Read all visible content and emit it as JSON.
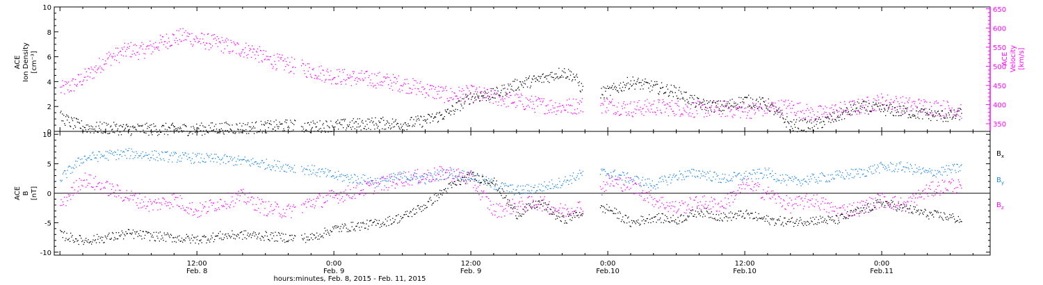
{
  "colors": {
    "black": "#000000",
    "magenta": "#ff00ff",
    "blue": "#1e88e5"
  },
  "chart_data": [
    {
      "type": "scatter",
      "panel": "top",
      "xlabel": "hours:minutes, Feb.  8, 2015 - Feb. 11, 2015",
      "x_ticks": [
        {
          "time": "12:00",
          "date": "Feb. 8",
          "hour": 12
        },
        {
          "time": "0:00",
          "date": "Feb. 9",
          "hour": 24
        },
        {
          "time": "12:00",
          "date": "Feb. 9",
          "hour": 36
        },
        {
          "time": "0:00",
          "date": "Feb.10",
          "hour": 48
        },
        {
          "time": "12:00",
          "date": "Feb.10",
          "hour": 60
        },
        {
          "time": "0:00",
          "date": "Feb.11",
          "hour": 72
        }
      ],
      "xlim_hours": [
        -0.5,
        81.5
      ],
      "y_left": {
        "label_lines": [
          "ACE",
          "Ion Density",
          "[cm⁻³]"
        ],
        "ylim": [
          0,
          10
        ],
        "ticks": [
          "0",
          "2",
          "4",
          "6",
          "8",
          "10"
        ]
      },
      "y_right": {
        "label_lines": [
          "ACE",
          "Velocity",
          "[km/s]"
        ],
        "ylim": [
          330,
          655
        ],
        "ticks": [
          "350",
          "400",
          "450",
          "500",
          "550",
          "600",
          "650"
        ]
      },
      "series": [
        {
          "name": "",
          "axis": "left",
          "color": "black",
          "points": [
            [
              0,
              1.2
            ],
            [
              1,
              0.7
            ],
            [
              2,
              0.4
            ],
            [
              3,
              0.3
            ],
            [
              4,
              0.3
            ],
            [
              6,
              0.2
            ],
            [
              8,
              0.2
            ],
            [
              10,
              0.2
            ],
            [
              12,
              0.2
            ],
            [
              14,
              0.3
            ],
            [
              16,
              0.3
            ],
            [
              18,
              0.4
            ],
            [
              20,
              0.5
            ],
            [
              22,
              0.4
            ],
            [
              24,
              0.5
            ],
            [
              26,
              0.6
            ],
            [
              28,
              0.7
            ],
            [
              30,
              0.6
            ],
            [
              32,
              0.9
            ],
            [
              34,
              1.5
            ],
            [
              36,
              2.8
            ],
            [
              38,
              3.0
            ],
            [
              40,
              3.8
            ],
            [
              42,
              4.2
            ],
            [
              44,
              4.8
            ],
            [
              45,
              4.5
            ],
            [
              46,
              3.0
            ],
            [
              48,
              3.2
            ],
            [
              50,
              4.0
            ],
            [
              52,
              3.6
            ],
            [
              54,
              3.2
            ],
            [
              56,
              2.2
            ],
            [
              58,
              2.0
            ],
            [
              60,
              2.5
            ],
            [
              62,
              2.2
            ],
            [
              64,
              0.5
            ],
            [
              66,
              0.5
            ],
            [
              68,
              1.2
            ],
            [
              70,
              2.0
            ],
            [
              72,
              1.8
            ],
            [
              74,
              1.6
            ],
            [
              76,
              1.4
            ],
            [
              78,
              1.2
            ],
            [
              79,
              1.5
            ]
          ]
        },
        {
          "name": "",
          "axis": "right",
          "color": "magenta",
          "points": [
            [
              0,
              440
            ],
            [
              1,
              450
            ],
            [
              2,
              470
            ],
            [
              3,
              490
            ],
            [
              4,
              520
            ],
            [
              5,
              530
            ],
            [
              6,
              545
            ],
            [
              7,
              540
            ],
            [
              8,
              550
            ],
            [
              9,
              565
            ],
            [
              10,
              575
            ],
            [
              11,
              580
            ],
            [
              12,
              570
            ],
            [
              13,
              565
            ],
            [
              14,
              560
            ],
            [
              15,
              550
            ],
            [
              16,
              545
            ],
            [
              17,
              540
            ],
            [
              18,
              520
            ],
            [
              20,
              505
            ],
            [
              22,
              490
            ],
            [
              24,
              475
            ],
            [
              26,
              470
            ],
            [
              28,
              465
            ],
            [
              30,
              455
            ],
            [
              32,
              440
            ],
            [
              34,
              425
            ],
            [
              36,
              430
            ],
            [
              38,
              420
            ],
            [
              40,
              410
            ],
            [
              42,
              400
            ],
            [
              44,
              395
            ],
            [
              46,
              400
            ],
            [
              48,
              400
            ],
            [
              50,
              390
            ],
            [
              52,
              395
            ],
            [
              54,
              392
            ],
            [
              56,
              388
            ],
            [
              58,
              390
            ],
            [
              60,
              385
            ],
            [
              62,
              392
            ],
            [
              64,
              395
            ],
            [
              66,
              375
            ],
            [
              68,
              385
            ],
            [
              70,
              395
            ],
            [
              72,
              410
            ],
            [
              74,
              400
            ],
            [
              76,
              395
            ],
            [
              78,
              390
            ],
            [
              79,
              385
            ]
          ]
        }
      ]
    },
    {
      "type": "scatter",
      "panel": "bottom",
      "x_ticks_shared": true,
      "xlim_hours": [
        -0.5,
        81.5
      ],
      "y_left": {
        "label_lines": [
          "ACE",
          "B",
          "[nT]"
        ],
        "ylim": [
          -10.5,
          10.5
        ],
        "ticks": [
          "-10",
          "-5",
          "0",
          "5",
          "10"
        ]
      },
      "legend": [
        {
          "label": "B",
          "sub": "x",
          "color": "black"
        },
        {
          "label": "B",
          "sub": "y",
          "color": "blue"
        },
        {
          "label": "B",
          "sub": "z",
          "color": "magenta"
        }
      ],
      "series": [
        {
          "name": "Bx",
          "color": "black",
          "points": [
            [
              0,
              -7.0
            ],
            [
              2,
              -8.0
            ],
            [
              4,
              -7.5
            ],
            [
              6,
              -6.8
            ],
            [
              8,
              -7.2
            ],
            [
              10,
              -7.5
            ],
            [
              12,
              -7.8
            ],
            [
              14,
              -7.2
            ],
            [
              16,
              -7.0
            ],
            [
              18,
              -7.2
            ],
            [
              20,
              -7.5
            ],
            [
              22,
              -7.5
            ],
            [
              24,
              -6.0
            ],
            [
              26,
              -5.5
            ],
            [
              28,
              -5.0
            ],
            [
              30,
              -4.0
            ],
            [
              32,
              -2.0
            ],
            [
              34,
              1.0
            ],
            [
              36,
              3.0
            ],
            [
              38,
              2.0
            ],
            [
              40,
              -3.5
            ],
            [
              42,
              -1.5
            ],
            [
              44,
              -4.5
            ],
            [
              46,
              -3.0
            ],
            [
              48,
              -2.5
            ],
            [
              50,
              -5.0
            ],
            [
              52,
              -4.0
            ],
            [
              54,
              -4.5
            ],
            [
              56,
              -3.0
            ],
            [
              58,
              -4.0
            ],
            [
              60,
              -3.5
            ],
            [
              62,
              -4.5
            ],
            [
              64,
              -4.8
            ],
            [
              66,
              -4.5
            ],
            [
              68,
              -4.5
            ],
            [
              70,
              -3.0
            ],
            [
              72,
              -1.5
            ],
            [
              74,
              -2.5
            ],
            [
              76,
              -3.5
            ],
            [
              78,
              -4.0
            ],
            [
              79,
              -4.5
            ]
          ]
        },
        {
          "name": "By",
          "color": "blue",
          "points": [
            [
              0,
              2.5
            ],
            [
              2,
              6.0
            ],
            [
              4,
              6.5
            ],
            [
              6,
              6.8
            ],
            [
              8,
              6.5
            ],
            [
              10,
              6.2
            ],
            [
              12,
              6.0
            ],
            [
              14,
              5.8
            ],
            [
              16,
              5.5
            ],
            [
              18,
              5.0
            ],
            [
              20,
              4.5
            ],
            [
              22,
              4.0
            ],
            [
              24,
              3.0
            ],
            [
              26,
              2.5
            ],
            [
              28,
              2.0
            ],
            [
              30,
              3.0
            ],
            [
              32,
              2.5
            ],
            [
              34,
              3.5
            ],
            [
              36,
              3.0
            ],
            [
              38,
              1.5
            ],
            [
              40,
              0.5
            ],
            [
              42,
              1.0
            ],
            [
              44,
              2.0
            ],
            [
              46,
              3.5
            ],
            [
              48,
              3.5
            ],
            [
              50,
              2.5
            ],
            [
              52,
              1.5
            ],
            [
              54,
              3.0
            ],
            [
              56,
              3.5
            ],
            [
              58,
              2.5
            ],
            [
              60,
              3.0
            ],
            [
              62,
              3.5
            ],
            [
              64,
              2.0
            ],
            [
              66,
              2.5
            ],
            [
              68,
              3.0
            ],
            [
              70,
              3.5
            ],
            [
              72,
              4.5
            ],
            [
              74,
              4.5
            ],
            [
              76,
              3.5
            ],
            [
              78,
              4.0
            ],
            [
              79,
              4.5
            ]
          ]
        },
        {
          "name": "Bz",
          "color": "magenta",
          "points": [
            [
              0,
              -2.0
            ],
            [
              2,
              2.5
            ],
            [
              4,
              1.0
            ],
            [
              6,
              -0.5
            ],
            [
              8,
              -2.0
            ],
            [
              10,
              -1.0
            ],
            [
              12,
              -3.0
            ],
            [
              14,
              -1.5
            ],
            [
              16,
              -0.5
            ],
            [
              18,
              -2.5
            ],
            [
              20,
              -3.0
            ],
            [
              22,
              -1.5
            ],
            [
              24,
              -0.5
            ],
            [
              26,
              0.5
            ],
            [
              28,
              1.5
            ],
            [
              30,
              2.5
            ],
            [
              32,
              3.0
            ],
            [
              34,
              3.5
            ],
            [
              36,
              2.5
            ],
            [
              38,
              -3.0
            ],
            [
              40,
              -2.0
            ],
            [
              42,
              -1.5
            ],
            [
              44,
              -3.0
            ],
            [
              46,
              -2.0
            ],
            [
              48,
              2.0
            ],
            [
              50,
              1.5
            ],
            [
              52,
              -1.0
            ],
            [
              54,
              -2.5
            ],
            [
              56,
              -1.5
            ],
            [
              58,
              -2.0
            ],
            [
              60,
              1.5
            ],
            [
              62,
              0.0
            ],
            [
              64,
              -2.0
            ],
            [
              66,
              -1.0
            ],
            [
              68,
              -3.0
            ],
            [
              70,
              -2.5
            ],
            [
              72,
              -1.0
            ],
            [
              74,
              -2.0
            ],
            [
              76,
              0.5
            ],
            [
              78,
              1.5
            ],
            [
              79,
              1.0
            ]
          ]
        }
      ]
    }
  ]
}
